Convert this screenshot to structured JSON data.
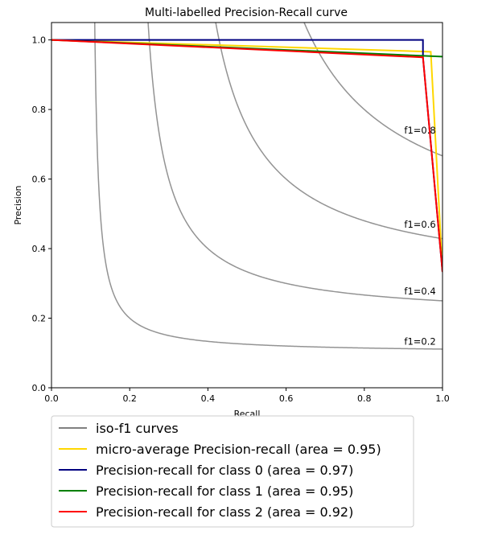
{
  "chart_data": {
    "type": "line",
    "title": "Multi-labelled Precision-Recall curve",
    "xlabel": "Recall",
    "ylabel": "Precision",
    "xlim": [
      0.0,
      1.0
    ],
    "ylim": [
      0.0,
      1.05
    ],
    "xticks": [
      0.0,
      0.2,
      0.4,
      0.6,
      0.8,
      1.0
    ],
    "yticks": [
      0.0,
      0.2,
      0.4,
      0.6,
      0.8,
      1.0
    ],
    "tick_labels_x": [
      "0.0",
      "0.2",
      "0.4",
      "0.6",
      "0.8",
      "1.0"
    ],
    "tick_labels_y": [
      "0.0",
      "0.2",
      "0.4",
      "0.6",
      "0.8",
      "1.0"
    ],
    "grid": false,
    "legend_position": "below",
    "iso_f1": {
      "legend_label": "iso-f1 curves",
      "color": "#808080",
      "values": [
        0.2,
        0.4,
        0.6,
        0.8
      ],
      "labels": [
        "f1=0.2",
        "f1=0.4",
        "f1=0.6",
        "f1=0.8"
      ],
      "label_x": 0.9
    },
    "series": [
      {
        "name": "micro-average Precision-recall (area = 0.95)",
        "color": "#ffd700",
        "x": [
          0.0,
          0.97,
          1.0
        ],
        "y": [
          1.0,
          0.966,
          0.333
        ]
      },
      {
        "name": "Precision-recall for class 0 (area = 0.97)",
        "color": "#000080",
        "x": [
          0.0,
          0.95,
          0.95,
          1.0
        ],
        "y": [
          1.0,
          1.0,
          0.95,
          0.333
        ]
      },
      {
        "name": "Precision-recall for class 1 (area = 0.95)",
        "color": "#008000",
        "x": [
          0.0,
          1.0
        ],
        "y": [
          1.0,
          0.952
        ]
      },
      {
        "name": "Precision-recall for class 2 (area = 0.92)",
        "color": "#ff0000",
        "x": [
          0.0,
          0.95,
          1.0
        ],
        "y": [
          1.0,
          0.95,
          0.333
        ]
      }
    ]
  }
}
